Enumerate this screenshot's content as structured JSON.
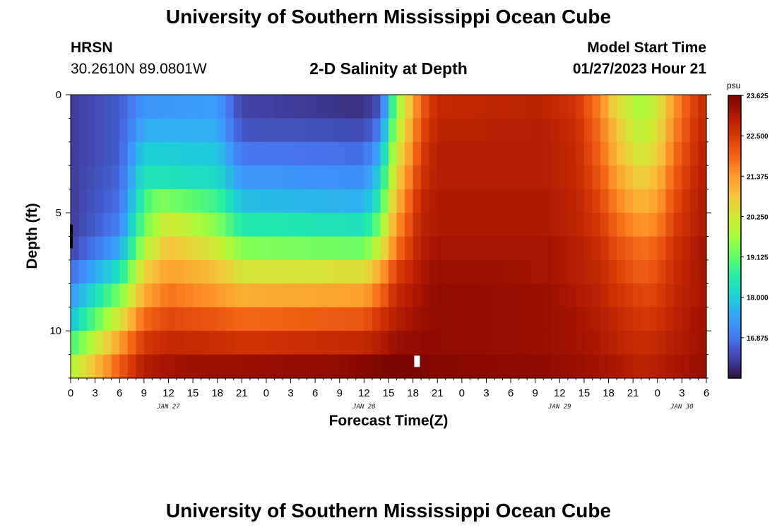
{
  "header": {
    "title": "University of Southern Mississippi Ocean Cube",
    "station": "HRSN",
    "coords": "30.2610N  89.0801W",
    "subtitle": "2-D Salinity at Depth",
    "start_label": "Model Start Time",
    "start_value": "01/27/2023 Hour 21"
  },
  "footer": {
    "title": "University of Southern Mississippi Ocean Cube"
  },
  "chart_data": {
    "type": "heatmap",
    "title": "2-D Salinity at Depth",
    "xlabel": "Forecast Time(Z)",
    "ylabel": "Depth (ft)",
    "x_tick_labels": [
      "0",
      "3",
      "6",
      "9",
      "12",
      "15",
      "18",
      "21",
      "0",
      "3",
      "6",
      "9",
      "12",
      "15",
      "18",
      "21",
      "0",
      "3",
      "6",
      "9",
      "12",
      "15",
      "18",
      "21",
      "0",
      "3",
      "6"
    ],
    "x_hours_range": [
      0,
      78
    ],
    "date_labels": [
      {
        "label": "JAN 27",
        "hour": 12
      },
      {
        "label": "JAN 28",
        "hour": 36
      },
      {
        "label": "JAN 29",
        "hour": 60
      },
      {
        "label": "JAN 30",
        "hour": 75
      }
    ],
    "y_tick_labels": [
      "0",
      "5",
      "10"
    ],
    "y_ticks": [
      0,
      5,
      10
    ],
    "ylim": [
      0,
      12
    ],
    "colorbar": {
      "unit": "psu",
      "min": 15.75,
      "max": 23.625,
      "labels": [
        "23.625",
        "22.500",
        "21.375",
        "20.250",
        "19.125",
        "18.000",
        "16.875"
      ],
      "label_values": [
        23.625,
        22.5,
        21.375,
        20.25,
        19.125,
        18.0,
        16.875
      ]
    },
    "series": [
      {
        "depth": 0.5,
        "values": [
          {
            "h": 0,
            "v": 16.2
          },
          {
            "h": 6,
            "v": 16.6
          },
          {
            "h": 9,
            "v": 17.3
          },
          {
            "h": 18,
            "v": 17.4
          },
          {
            "h": 21,
            "v": 16.3
          },
          {
            "h": 36,
            "v": 16.1
          },
          {
            "h": 38,
            "v": 16.5
          },
          {
            "h": 39,
            "v": 18.0
          },
          {
            "h": 40,
            "v": 19.5
          },
          {
            "h": 43,
            "v": 22.0
          },
          {
            "h": 45,
            "v": 22.8
          },
          {
            "h": 58,
            "v": 22.9
          },
          {
            "h": 62,
            "v": 22.6
          },
          {
            "h": 65,
            "v": 21.6
          },
          {
            "h": 67,
            "v": 20.5
          },
          {
            "h": 70,
            "v": 19.7
          },
          {
            "h": 72,
            "v": 20.2
          },
          {
            "h": 74,
            "v": 21.4
          },
          {
            "h": 77,
            "v": 22.6
          },
          {
            "h": 78,
            "v": 22.8
          }
        ]
      },
      {
        "depth": 1.5,
        "values": [
          {
            "h": 0,
            "v": 16.2
          },
          {
            "h": 6,
            "v": 16.6
          },
          {
            "h": 9,
            "v": 17.6
          },
          {
            "h": 18,
            "v": 17.6
          },
          {
            "h": 21,
            "v": 16.5
          },
          {
            "h": 36,
            "v": 16.4
          },
          {
            "h": 38,
            "v": 17.0
          },
          {
            "h": 39,
            "v": 18.5
          },
          {
            "h": 40,
            "v": 19.8
          },
          {
            "h": 43,
            "v": 22.2
          },
          {
            "h": 45,
            "v": 22.9
          },
          {
            "h": 58,
            "v": 23.0
          },
          {
            "h": 62,
            "v": 22.7
          },
          {
            "h": 65,
            "v": 21.8
          },
          {
            "h": 67,
            "v": 20.8
          },
          {
            "h": 70,
            "v": 19.9
          },
          {
            "h": 72,
            "v": 20.4
          },
          {
            "h": 74,
            "v": 21.6
          },
          {
            "h": 77,
            "v": 22.7
          },
          {
            "h": 78,
            "v": 22.9
          }
        ]
      },
      {
        "depth": 2.5,
        "values": [
          {
            "h": 0,
            "v": 16.2
          },
          {
            "h": 6,
            "v": 16.6
          },
          {
            "h": 9,
            "v": 18.0
          },
          {
            "h": 18,
            "v": 17.9
          },
          {
            "h": 21,
            "v": 16.9
          },
          {
            "h": 36,
            "v": 16.8
          },
          {
            "h": 38,
            "v": 17.6
          },
          {
            "h": 39,
            "v": 19.0
          },
          {
            "h": 40,
            "v": 20.2
          },
          {
            "h": 43,
            "v": 22.4
          },
          {
            "h": 45,
            "v": 23.0
          },
          {
            "h": 58,
            "v": 23.0
          },
          {
            "h": 62,
            "v": 22.8
          },
          {
            "h": 65,
            "v": 21.9
          },
          {
            "h": 67,
            "v": 21.0
          },
          {
            "h": 70,
            "v": 20.2
          },
          {
            "h": 72,
            "v": 20.6
          },
          {
            "h": 74,
            "v": 21.8
          },
          {
            "h": 77,
            "v": 22.8
          },
          {
            "h": 78,
            "v": 23.0
          }
        ]
      },
      {
        "depth": 3.5,
        "values": [
          {
            "h": 0,
            "v": 16.2
          },
          {
            "h": 6,
            "v": 16.7
          },
          {
            "h": 9,
            "v": 18.4
          },
          {
            "h": 18,
            "v": 18.2
          },
          {
            "h": 21,
            "v": 17.3
          },
          {
            "h": 36,
            "v": 17.2
          },
          {
            "h": 38,
            "v": 18.1
          },
          {
            "h": 39,
            "v": 19.5
          },
          {
            "h": 40,
            "v": 20.6
          },
          {
            "h": 43,
            "v": 22.6
          },
          {
            "h": 45,
            "v": 23.0
          },
          {
            "h": 58,
            "v": 23.0
          },
          {
            "h": 62,
            "v": 22.8
          },
          {
            "h": 65,
            "v": 22.1
          },
          {
            "h": 67,
            "v": 21.3
          },
          {
            "h": 70,
            "v": 20.6
          },
          {
            "h": 72,
            "v": 21.0
          },
          {
            "h": 74,
            "v": 22.0
          },
          {
            "h": 77,
            "v": 22.9
          },
          {
            "h": 78,
            "v": 23.0
          }
        ]
      },
      {
        "depth": 4.5,
        "values": [
          {
            "h": 0,
            "v": 16.2
          },
          {
            "h": 6,
            "v": 16.8
          },
          {
            "h": 9,
            "v": 18.8
          },
          {
            "h": 11,
            "v": 19.4
          },
          {
            "h": 18,
            "v": 18.8
          },
          {
            "h": 21,
            "v": 17.8
          },
          {
            "h": 36,
            "v": 17.6
          },
          {
            "h": 38,
            "v": 18.6
          },
          {
            "h": 39,
            "v": 20.0
          },
          {
            "h": 40,
            "v": 21.0
          },
          {
            "h": 43,
            "v": 22.8
          },
          {
            "h": 45,
            "v": 23.1
          },
          {
            "h": 58,
            "v": 23.1
          },
          {
            "h": 62,
            "v": 22.9
          },
          {
            "h": 65,
            "v": 22.3
          },
          {
            "h": 67,
            "v": 21.6
          },
          {
            "h": 70,
            "v": 21.0
          },
          {
            "h": 72,
            "v": 21.3
          },
          {
            "h": 74,
            "v": 22.2
          },
          {
            "h": 77,
            "v": 23.0
          },
          {
            "h": 78,
            "v": 23.1
          }
        ]
      },
      {
        "depth": 5.5,
        "values": [
          {
            "h": 0,
            "v": 16.2
          },
          {
            "h": 6,
            "v": 17.0
          },
          {
            "h": 9,
            "v": 19.2
          },
          {
            "h": 12,
            "v": 20.3
          },
          {
            "h": 18,
            "v": 19.4
          },
          {
            "h": 21,
            "v": 18.5
          },
          {
            "h": 36,
            "v": 18.3
          },
          {
            "h": 38,
            "v": 19.3
          },
          {
            "h": 39,
            "v": 20.5
          },
          {
            "h": 40,
            "v": 21.4
          },
          {
            "h": 43,
            "v": 22.9
          },
          {
            "h": 45,
            "v": 23.1
          },
          {
            "h": 58,
            "v": 23.1
          },
          {
            "h": 62,
            "v": 22.9
          },
          {
            "h": 65,
            "v": 22.5
          },
          {
            "h": 67,
            "v": 21.9
          },
          {
            "h": 70,
            "v": 21.4
          },
          {
            "h": 72,
            "v": 21.6
          },
          {
            "h": 74,
            "v": 22.4
          },
          {
            "h": 77,
            "v": 23.0
          },
          {
            "h": 78,
            "v": 23.1
          }
        ]
      },
      {
        "depth": 6.5,
        "values": [
          {
            "h": 0,
            "v": 16.3
          },
          {
            "h": 6,
            "v": 17.5
          },
          {
            "h": 9,
            "v": 19.8
          },
          {
            "h": 12,
            "v": 20.9
          },
          {
            "h": 18,
            "v": 20.2
          },
          {
            "h": 21,
            "v": 19.4
          },
          {
            "h": 36,
            "v": 19.2
          },
          {
            "h": 38,
            "v": 20.2
          },
          {
            "h": 39,
            "v": 21.0
          },
          {
            "h": 40,
            "v": 21.8
          },
          {
            "h": 43,
            "v": 23.0
          },
          {
            "h": 45,
            "v": 23.2
          },
          {
            "h": 58,
            "v": 23.2
          },
          {
            "h": 62,
            "v": 23.0
          },
          {
            "h": 65,
            "v": 22.7
          },
          {
            "h": 67,
            "v": 22.2
          },
          {
            "h": 70,
            "v": 21.8
          },
          {
            "h": 72,
            "v": 22.0
          },
          {
            "h": 74,
            "v": 22.6
          },
          {
            "h": 77,
            "v": 23.1
          },
          {
            "h": 78,
            "v": 23.2
          }
        ]
      },
      {
        "depth": 7.5,
        "values": [
          {
            "h": 0,
            "v": 16.8
          },
          {
            "h": 6,
            "v": 18.3
          },
          {
            "h": 9,
            "v": 20.6
          },
          {
            "h": 12,
            "v": 21.3
          },
          {
            "h": 18,
            "v": 20.9
          },
          {
            "h": 21,
            "v": 20.3
          },
          {
            "h": 36,
            "v": 20.4
          },
          {
            "h": 38,
            "v": 21.2
          },
          {
            "h": 40,
            "v": 22.4
          },
          {
            "h": 43,
            "v": 23.1
          },
          {
            "h": 45,
            "v": 23.3
          },
          {
            "h": 58,
            "v": 23.2
          },
          {
            "h": 62,
            "v": 23.0
          },
          {
            "h": 65,
            "v": 22.8
          },
          {
            "h": 67,
            "v": 22.4
          },
          {
            "h": 70,
            "v": 22.0
          },
          {
            "h": 72,
            "v": 22.2
          },
          {
            "h": 74,
            "v": 22.7
          },
          {
            "h": 77,
            "v": 23.1
          },
          {
            "h": 78,
            "v": 23.2
          }
        ]
      },
      {
        "depth": 8.5,
        "values": [
          {
            "h": 0,
            "v": 17.3
          },
          {
            "h": 6,
            "v": 19.3
          },
          {
            "h": 9,
            "v": 21.2
          },
          {
            "h": 12,
            "v": 21.8
          },
          {
            "h": 18,
            "v": 21.4
          },
          {
            "h": 21,
            "v": 21.1
          },
          {
            "h": 36,
            "v": 21.3
          },
          {
            "h": 38,
            "v": 21.9
          },
          {
            "h": 40,
            "v": 22.8
          },
          {
            "h": 43,
            "v": 23.2
          },
          {
            "h": 45,
            "v": 23.4
          },
          {
            "h": 58,
            "v": 23.3
          },
          {
            "h": 62,
            "v": 23.1
          },
          {
            "h": 65,
            "v": 22.9
          },
          {
            "h": 67,
            "v": 22.6
          },
          {
            "h": 70,
            "v": 22.3
          },
          {
            "h": 72,
            "v": 22.4
          },
          {
            "h": 74,
            "v": 22.8
          },
          {
            "h": 77,
            "v": 23.1
          },
          {
            "h": 78,
            "v": 23.2
          }
        ]
      },
      {
        "depth": 9.5,
        "values": [
          {
            "h": 0,
            "v": 17.8
          },
          {
            "h": 6,
            "v": 20.3
          },
          {
            "h": 9,
            "v": 21.9
          },
          {
            "h": 12,
            "v": 22.3
          },
          {
            "h": 18,
            "v": 22.1
          },
          {
            "h": 21,
            "v": 21.9
          },
          {
            "h": 36,
            "v": 22.1
          },
          {
            "h": 38,
            "v": 22.6
          },
          {
            "h": 40,
            "v": 23.0
          },
          {
            "h": 43,
            "v": 23.3
          },
          {
            "h": 45,
            "v": 23.4
          },
          {
            "h": 58,
            "v": 23.3
          },
          {
            "h": 62,
            "v": 23.2
          },
          {
            "h": 65,
            "v": 23.0
          },
          {
            "h": 67,
            "v": 22.8
          },
          {
            "h": 70,
            "v": 22.5
          },
          {
            "h": 72,
            "v": 22.6
          },
          {
            "h": 74,
            "v": 22.9
          },
          {
            "h": 77,
            "v": 23.2
          },
          {
            "h": 78,
            "v": 23.2
          }
        ]
      },
      {
        "depth": 10.5,
        "values": [
          {
            "h": 0,
            "v": 18.8
          },
          {
            "h": 6,
            "v": 21.3
          },
          {
            "h": 9,
            "v": 22.5
          },
          {
            "h": 12,
            "v": 22.8
          },
          {
            "h": 18,
            "v": 22.7
          },
          {
            "h": 21,
            "v": 22.6
          },
          {
            "h": 36,
            "v": 22.8
          },
          {
            "h": 38,
            "v": 23.0
          },
          {
            "h": 40,
            "v": 23.3
          },
          {
            "h": 43,
            "v": 23.4
          },
          {
            "h": 45,
            "v": 23.4
          },
          {
            "h": 58,
            "v": 23.3
          },
          {
            "h": 62,
            "v": 23.2
          },
          {
            "h": 65,
            "v": 23.1
          },
          {
            "h": 67,
            "v": 22.9
          },
          {
            "h": 70,
            "v": 22.7
          },
          {
            "h": 72,
            "v": 22.8
          },
          {
            "h": 74,
            "v": 23.0
          },
          {
            "h": 77,
            "v": 23.2
          },
          {
            "h": 78,
            "v": 23.3
          }
        ]
      },
      {
        "depth": 11.5,
        "values": [
          {
            "h": 0,
            "v": 19.8
          },
          {
            "h": 6,
            "v": 22.0
          },
          {
            "h": 9,
            "v": 23.0
          },
          {
            "h": 12,
            "v": 23.2
          },
          {
            "h": 18,
            "v": 23.3
          },
          {
            "h": 21,
            "v": 23.3
          },
          {
            "h": 33,
            "v": 23.4
          },
          {
            "h": 36,
            "v": 23.5
          },
          {
            "h": 39,
            "v": 23.6
          },
          {
            "h": 42,
            "v": 23.6
          },
          {
            "h": 45,
            "v": 23.5
          },
          {
            "h": 58,
            "v": 23.4
          },
          {
            "h": 62,
            "v": 23.3
          },
          {
            "h": 65,
            "v": 23.2
          },
          {
            "h": 67,
            "v": 23.1
          },
          {
            "h": 70,
            "v": 22.9
          },
          {
            "h": 72,
            "v": 23.0
          },
          {
            "h": 74,
            "v": 23.1
          },
          {
            "h": 77,
            "v": 23.3
          },
          {
            "h": 78,
            "v": 23.3
          }
        ]
      }
    ],
    "missing_marker_hour": 42.5,
    "colors": {
      "stops": [
        "#30123b",
        "#4145ab",
        "#4675ed",
        "#39a2fc",
        "#1bcfd4",
        "#24eca6",
        "#61fc6c",
        "#a4fc3b",
        "#d1e834",
        "#f3c63a",
        "#fe9b2d",
        "#f36315",
        "#d93806",
        "#b11901",
        "#7a0402"
      ]
    }
  }
}
